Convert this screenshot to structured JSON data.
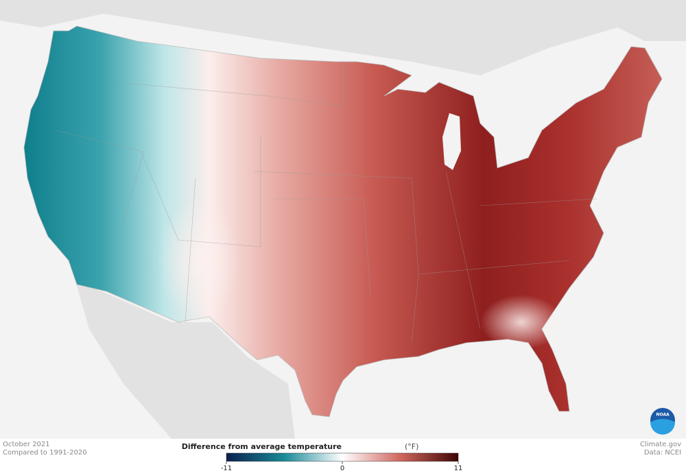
{
  "map": {
    "title": "October 2021",
    "subtitle": "Compared to 1991-2020",
    "logo": "NOAA"
  },
  "legend": {
    "title": "Difference from average temperature",
    "unit": "(°F)",
    "range": [
      -11,
      11
    ],
    "ticks": [
      -11,
      0,
      11
    ]
  },
  "credits": {
    "source": "Climate.gov",
    "data": "Data: NCEI"
  }
}
